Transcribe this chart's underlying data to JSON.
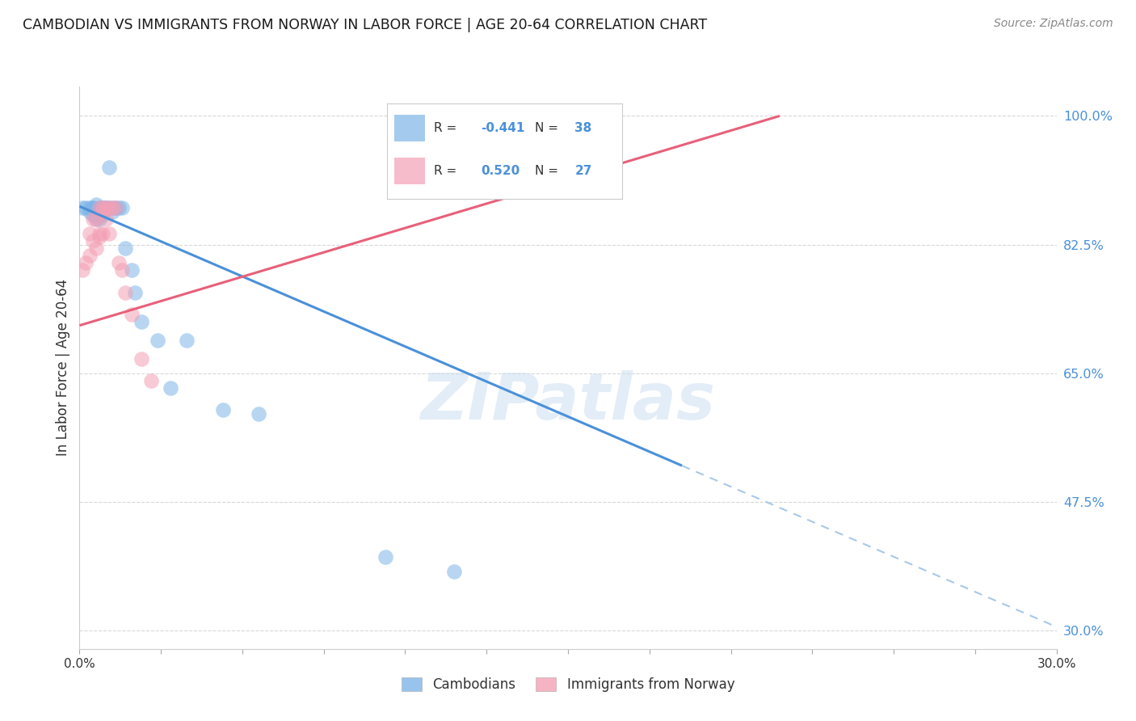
{
  "title": "CAMBODIAN VS IMMIGRANTS FROM NORWAY IN LABOR FORCE | AGE 20-64 CORRELATION CHART",
  "source": "Source: ZipAtlas.com",
  "ylabel": "In Labor Force | Age 20-64",
  "xlim": [
    0.0,
    0.3
  ],
  "ylim": [
    0.275,
    1.04
  ],
  "ytick_positions": [
    0.3,
    0.475,
    0.65,
    0.825,
    1.0
  ],
  "ytick_labels": [
    "30.0%",
    "47.5%",
    "65.0%",
    "82.5%",
    "100.0%"
  ],
  "xtick_positions": [
    0.0,
    0.025,
    0.05,
    0.075,
    0.1,
    0.125,
    0.15,
    0.175,
    0.2,
    0.225,
    0.25,
    0.275,
    0.3
  ],
  "xtick_labels_show": [
    "0.0%",
    "",
    "",
    "",
    "",
    "",
    "",
    "",
    "",
    "",
    "",
    "",
    "30.0%"
  ],
  "cambodian_x": [
    0.001,
    0.002,
    0.003,
    0.003,
    0.004,
    0.004,
    0.004,
    0.005,
    0.005,
    0.005,
    0.005,
    0.006,
    0.006,
    0.006,
    0.007,
    0.007,
    0.007,
    0.007,
    0.008,
    0.008,
    0.009,
    0.009,
    0.01,
    0.01,
    0.011,
    0.012,
    0.013,
    0.014,
    0.016,
    0.017,
    0.019,
    0.024,
    0.028,
    0.033,
    0.044,
    0.055,
    0.094,
    0.115
  ],
  "cambodian_y": [
    0.875,
    0.875,
    0.875,
    0.87,
    0.875,
    0.865,
    0.875,
    0.88,
    0.87,
    0.865,
    0.86,
    0.875,
    0.865,
    0.86,
    0.875,
    0.87,
    0.865,
    0.875,
    0.875,
    0.875,
    0.875,
    0.93,
    0.875,
    0.87,
    0.875,
    0.875,
    0.875,
    0.82,
    0.79,
    0.76,
    0.72,
    0.695,
    0.63,
    0.695,
    0.6,
    0.595,
    0.4,
    0.38
  ],
  "norway_x": [
    0.001,
    0.002,
    0.003,
    0.003,
    0.004,
    0.004,
    0.005,
    0.005,
    0.006,
    0.006,
    0.006,
    0.007,
    0.007,
    0.007,
    0.008,
    0.008,
    0.009,
    0.009,
    0.01,
    0.011,
    0.012,
    0.013,
    0.014,
    0.016,
    0.019,
    0.022,
    0.14
  ],
  "norway_y": [
    0.79,
    0.8,
    0.81,
    0.84,
    0.83,
    0.86,
    0.82,
    0.86,
    0.835,
    0.84,
    0.875,
    0.87,
    0.84,
    0.875,
    0.86,
    0.875,
    0.84,
    0.875,
    0.875,
    0.875,
    0.8,
    0.79,
    0.76,
    0.73,
    0.67,
    0.64,
    0.995
  ],
  "cambodian_color": "#7eb5e8",
  "norway_color": "#f4a0b5",
  "cambodian_label": "Cambodians",
  "norway_label": "Immigrants from Norway",
  "cambodian_R": "-0.441",
  "cambodian_N": "38",
  "norway_R": "0.520",
  "norway_N": "27",
  "trend_cam_x0": 0.0,
  "trend_cam_y0": 0.877,
  "trend_cam_x1": 0.3,
  "trend_cam_y1": 0.305,
  "trend_cam_solid_end": 0.185,
  "trend_nor_x0": 0.0,
  "trend_nor_y0": 0.715,
  "trend_nor_x1": 0.215,
  "trend_nor_y1": 1.0,
  "watermark_text": "ZIPatlas",
  "background_color": "#ffffff",
  "grid_color": "#d8d8d8",
  "trend_blue_solid": "#4a90d9",
  "trend_blue_dash": "#a8c8e8",
  "trend_pink": "#e8607a"
}
